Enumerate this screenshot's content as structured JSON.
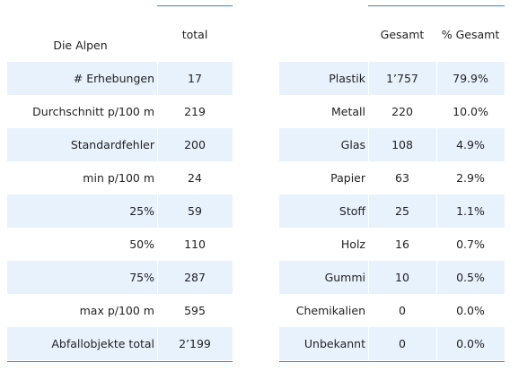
{
  "left_table": {
    "header": {
      "label": "Die Alpen",
      "value": "total"
    },
    "rows": [
      {
        "label": "# Erhebungen",
        "value": "17"
      },
      {
        "label": "Durchschnitt p/100 m",
        "value": "219"
      },
      {
        "label": "Standardfehler",
        "value": "200"
      },
      {
        "label": "min p/100 m",
        "value": "24"
      },
      {
        "label": "25%",
        "value": "59"
      },
      {
        "label": "50%",
        "value": "110"
      },
      {
        "label": "75%",
        "value": "287"
      },
      {
        "label": "max p/100 m",
        "value": "595"
      },
      {
        "label": "Abfallobjekte total",
        "value": "2’199"
      }
    ]
  },
  "right_table": {
    "header": {
      "label": "",
      "gesamt": "Gesamt",
      "pct": "% Gesamt"
    },
    "rows": [
      {
        "label": "Plastik",
        "gesamt": "1’757",
        "pct": "79.9%"
      },
      {
        "label": "Metall",
        "gesamt": "220",
        "pct": "10.0%"
      },
      {
        "label": "Glas",
        "gesamt": "108",
        "pct": "4.9%"
      },
      {
        "label": "Papier",
        "gesamt": "63",
        "pct": "2.9%"
      },
      {
        "label": "Stoff",
        "gesamt": "25",
        "pct": "1.1%"
      },
      {
        "label": "Holz",
        "gesamt": "16",
        "pct": "0.7%"
      },
      {
        "label": "Gummi",
        "gesamt": "10",
        "pct": "0.5%"
      },
      {
        "label": "Chemikalien",
        "gesamt": "0",
        "pct": "0.0%"
      },
      {
        "label": "Unbekannt",
        "gesamt": "0",
        "pct": "0.0%"
      }
    ]
  },
  "colors": {
    "band": "#e8f2fd",
    "rule": "#3a86c0",
    "text": "#222222"
  }
}
